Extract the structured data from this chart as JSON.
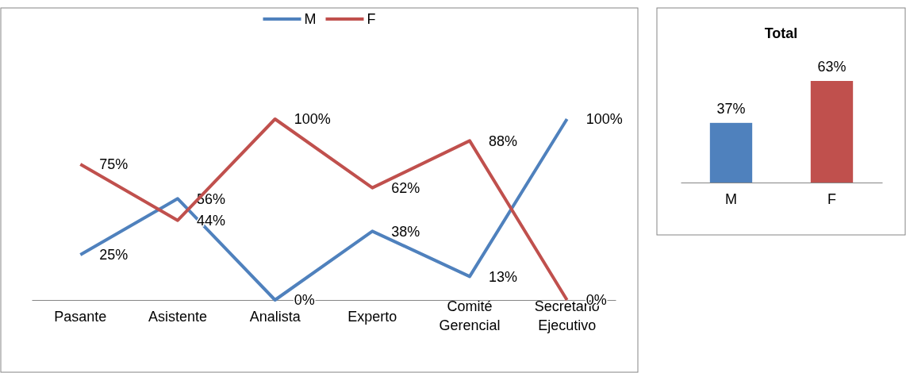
{
  "chart_data": [
    {
      "type": "line",
      "categories": [
        "Pasante",
        "Asistente",
        "Analista",
        "Experto",
        "Comité Gerencial",
        "Secretario Ejecutivo"
      ],
      "series": [
        {
          "name": "M",
          "color": "#4f81bd",
          "values": [
            25,
            56,
            0,
            38,
            13,
            100
          ],
          "value_labels": [
            "25%",
            "56%",
            "0%",
            "38%",
            "13%",
            "100%"
          ]
        },
        {
          "name": "F",
          "color": "#c0504d",
          "values": [
            75,
            44,
            100,
            62,
            88,
            0
          ],
          "value_labels": [
            "75%",
            "44%",
            "100%",
            "62%",
            "88%",
            "0%"
          ]
        }
      ],
      "legend": "top",
      "marker": "none",
      "line_style": "solid"
    },
    {
      "type": "bar",
      "title": "Total",
      "categories": [
        "M",
        "F"
      ],
      "values": [
        37,
        63
      ],
      "value_labels": [
        "37%",
        "63%"
      ],
      "colors": [
        "#4f81bd",
        "#c0504d"
      ]
    }
  ]
}
